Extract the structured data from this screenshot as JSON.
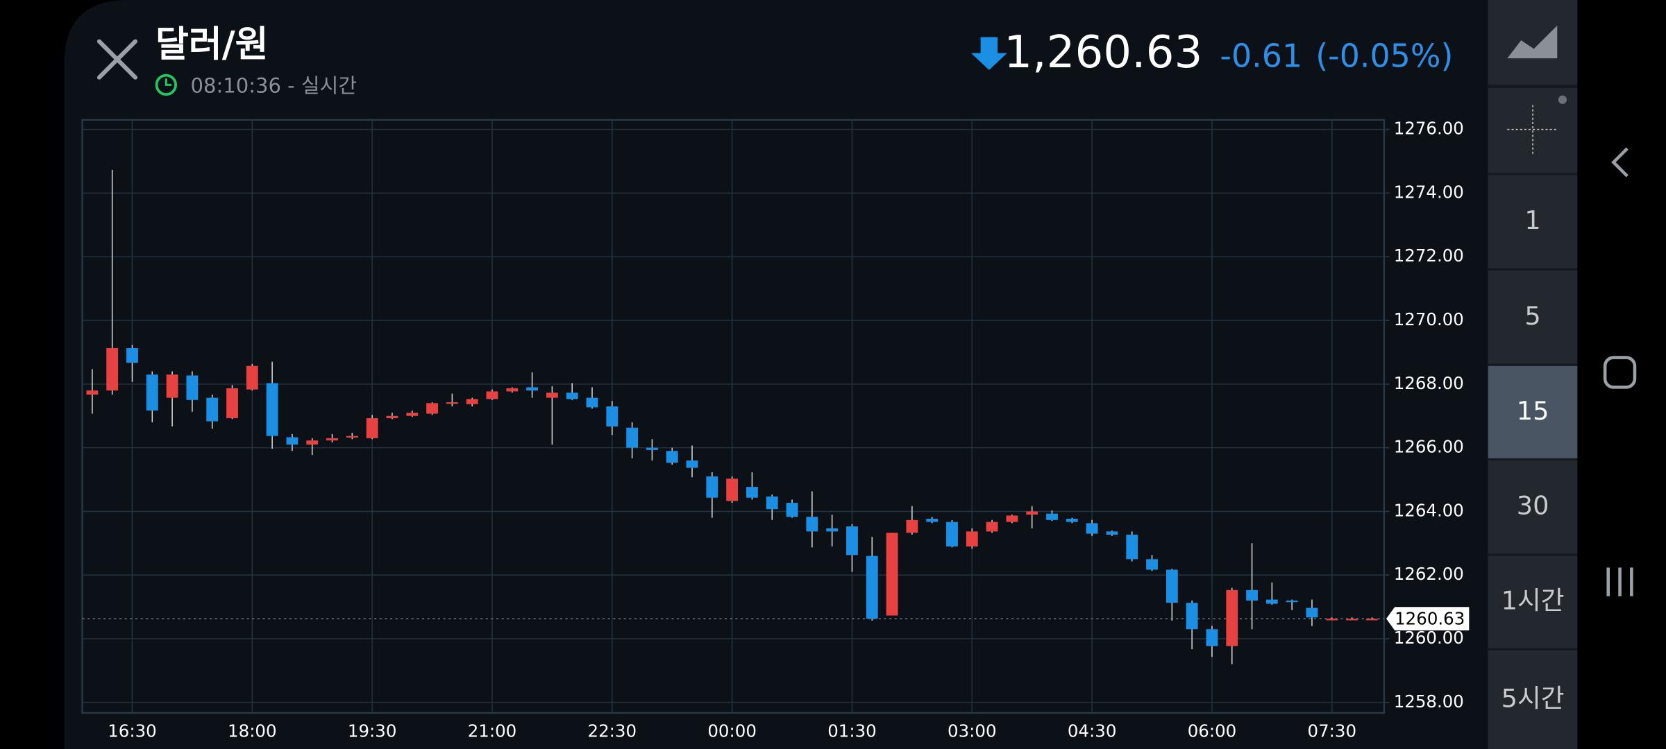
{
  "header": {
    "title": "달러/원",
    "time": "08:10:36 - 실시간",
    "price": "1,260.63",
    "change": "-0.61",
    "change_pct": "(-0.05%)"
  },
  "sidebar": {
    "intervals": [
      "1",
      "5",
      "15",
      "30",
      "1시간",
      "5시간"
    ],
    "selected": 2
  },
  "chart_data": {
    "type": "candlestick",
    "categories": [
      null,
      null,
      "16:30",
      null,
      null,
      null,
      null,
      null,
      "18:00",
      null,
      null,
      null,
      null,
      null,
      "19:30",
      null,
      null,
      null,
      null,
      null,
      "21:00",
      null,
      null,
      null,
      null,
      null,
      "22:30",
      null,
      null,
      null,
      null,
      null,
      "00:00",
      null,
      null,
      null,
      null,
      null,
      "01:30",
      null,
      null,
      null,
      null,
      null,
      "03:00",
      null,
      null,
      null,
      null,
      null,
      "04:30",
      null,
      null,
      null,
      null,
      null,
      "06:00",
      null,
      null,
      null,
      null,
      null,
      "07:30",
      null,
      null
    ],
    "open": [
      1267.67,
      1267.8,
      1269.13,
      1268.3,
      1267.57,
      1268.27,
      1267.57,
      1266.93,
      1267.83,
      1268.03,
      1266.33,
      1266.1,
      1266.23,
      1266.33,
      1266.3,
      1266.93,
      1267.0,
      1267.07,
      1267.4,
      1267.37,
      1267.53,
      1267.77,
      1267.9,
      1267.57,
      1267.73,
      1267.57,
      1267.3,
      1266.63,
      1266.0,
      1265.9,
      1265.6,
      1265.1,
      1264.33,
      1264.77,
      1264.47,
      1264.27,
      1263.83,
      1263.47,
      1263.53,
      1262.6,
      1260.73,
      1263.33,
      1263.77,
      1263.67,
      1262.9,
      1263.37,
      1263.67,
      1263.9,
      1263.93,
      1263.77,
      1263.63,
      1263.37,
      1263.27,
      1262.5,
      1262.17,
      1261.13,
      1260.3,
      1259.77,
      1261.53,
      1261.23,
      1261.2,
      1260.97,
      1260.63,
      1260.63,
      1260.63
    ],
    "high": [
      1268.47,
      1274.73,
      1269.23,
      1268.4,
      1268.4,
      1268.4,
      1267.67,
      1267.97,
      1268.63,
      1268.7,
      1266.43,
      1266.3,
      1266.43,
      1266.47,
      1267.03,
      1267.1,
      1267.17,
      1267.43,
      1267.7,
      1267.57,
      1267.83,
      1267.9,
      1268.37,
      1267.93,
      1268.03,
      1267.9,
      1267.47,
      1266.8,
      1266.27,
      1266.0,
      1266.07,
      1265.23,
      1265.1,
      1265.23,
      1264.53,
      1264.37,
      1264.63,
      1263.9,
      1263.6,
      1263.2,
      1263.33,
      1264.17,
      1263.83,
      1263.73,
      1263.47,
      1263.73,
      1263.9,
      1264.17,
      1264.03,
      1263.8,
      1263.73,
      1263.4,
      1263.37,
      1262.63,
      1262.2,
      1261.2,
      1260.4,
      1261.6,
      1263.0,
      1261.77,
      1261.23,
      1261.23,
      1260.67,
      1260.67,
      1260.67
    ],
    "low": [
      1267.07,
      1267.67,
      1268.07,
      1266.8,
      1266.67,
      1267.13,
      1266.6,
      1266.9,
      1267.8,
      1265.97,
      1265.9,
      1265.77,
      1266.17,
      1266.27,
      1266.27,
      1266.9,
      1266.97,
      1267.03,
      1267.3,
      1267.3,
      1267.5,
      1267.73,
      1267.57,
      1266.1,
      1267.5,
      1267.23,
      1266.4,
      1265.67,
      1265.6,
      1265.47,
      1265.07,
      1263.8,
      1264.27,
      1264.37,
      1263.73,
      1263.8,
      1262.87,
      1262.9,
      1262.1,
      1260.57,
      1260.73,
      1263.27,
      1263.63,
      1262.87,
      1262.83,
      1263.33,
      1263.63,
      1263.47,
      1263.7,
      1263.63,
      1263.23,
      1263.23,
      1262.43,
      1262.13,
      1260.57,
      1259.67,
      1259.43,
      1259.2,
      1260.3,
      1261.07,
      1260.9,
      1260.4,
      1260.6,
      1260.6,
      1260.6
    ],
    "close": [
      1267.8,
      1269.13,
      1268.67,
      1267.17,
      1268.3,
      1267.5,
      1266.83,
      1267.87,
      1268.57,
      1266.37,
      1266.1,
      1266.23,
      1266.3,
      1266.37,
      1266.93,
      1267.0,
      1267.1,
      1267.4,
      1267.43,
      1267.53,
      1267.77,
      1267.87,
      1267.8,
      1267.73,
      1267.53,
      1267.27,
      1266.67,
      1266.0,
      1265.93,
      1265.53,
      1265.37,
      1264.43,
      1265.03,
      1264.43,
      1264.07,
      1263.83,
      1263.37,
      1263.37,
      1262.63,
      1260.63,
      1263.33,
      1263.73,
      1263.67,
      1262.9,
      1263.37,
      1263.67,
      1263.87,
      1264.0,
      1263.73,
      1263.67,
      1263.3,
      1263.27,
      1262.5,
      1262.17,
      1261.13,
      1260.3,
      1259.77,
      1261.53,
      1261.2,
      1261.1,
      1261.17,
      1260.67,
      1260.63,
      1260.63,
      1260.63
    ],
    "up_color": "#e84142",
    "down_color": "#1a8fe3",
    "ylim": [
      1257.67,
      1276.3
    ],
    "yticks": [
      {
        "value": 1258,
        "label": "1258.00"
      },
      {
        "value": 1260,
        "label": "1260.00"
      },
      {
        "value": 1262,
        "label": "1262.00"
      },
      {
        "value": 1264,
        "label": "1264.00"
      },
      {
        "value": 1266,
        "label": "1266.00"
      },
      {
        "value": 1268,
        "label": "1268.00"
      },
      {
        "value": 1270,
        "label": "1270.00"
      },
      {
        "value": 1272,
        "label": "1272.00"
      },
      {
        "value": 1274,
        "label": "1274.00"
      },
      {
        "value": 1276,
        "label": "1276.00"
      }
    ],
    "last_price": {
      "value": 1260.63,
      "label": "1260.63"
    },
    "grid": true
  }
}
